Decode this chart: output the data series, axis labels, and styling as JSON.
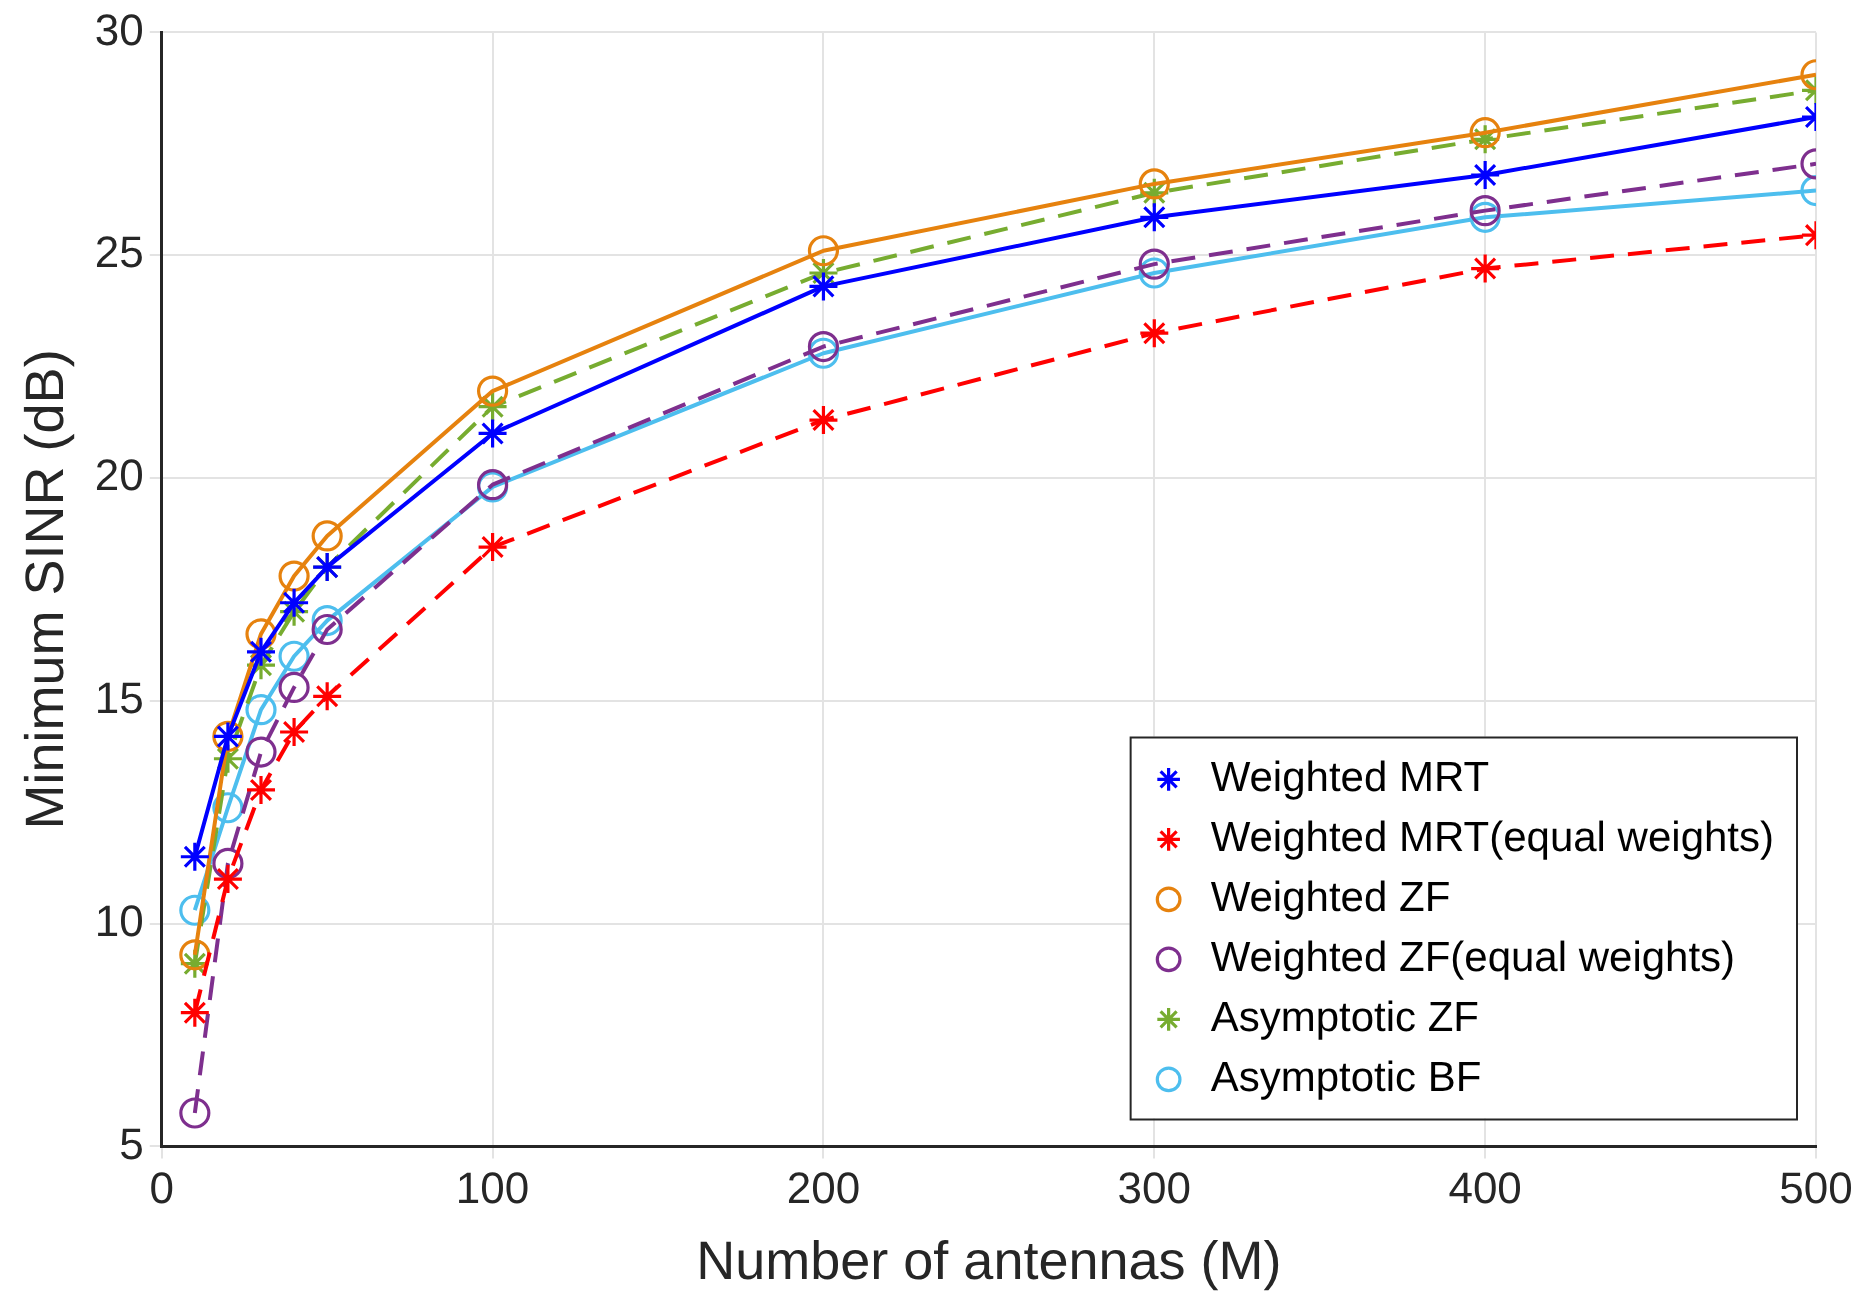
{
  "chart_data": {
    "type": "line",
    "xlabel": "Number of antennas (M)",
    "ylabel": "Minimum SINR (dB)",
    "x": [
      10,
      20,
      30,
      40,
      50,
      100,
      200,
      300,
      400,
      500
    ],
    "xlim": [
      0,
      500
    ],
    "xticks": [
      0,
      100,
      200,
      300,
      400,
      500
    ],
    "ylim": [
      5,
      30
    ],
    "yticks": [
      5,
      10,
      15,
      20,
      25,
      30
    ],
    "grid": true,
    "legend": "bottom right",
    "series": [
      {
        "name": "Weighted MRT",
        "color": "#0000ff",
        "marker": "cross",
        "line_style": "solid",
        "values": [
          11.5,
          14.2,
          16.1,
          17.2,
          18.0,
          21.0,
          24.3,
          25.85,
          26.8,
          28.1
        ]
      },
      {
        "name": "Weighted MRT(equal weights)",
        "color": "#ff0000",
        "marker": "cross",
        "line_style": "dashed",
        "values": [
          8.0,
          11.0,
          13.0,
          14.3,
          15.1,
          18.45,
          21.3,
          23.25,
          24.7,
          25.45
        ]
      },
      {
        "name": "Weighted ZF",
        "color": "#e6820e",
        "marker": "circle",
        "line_style": "solid",
        "values": [
          9.3,
          14.2,
          16.5,
          17.8,
          18.7,
          21.95,
          25.1,
          26.6,
          27.75,
          29.05
        ]
      },
      {
        "name": "Weighted ZF(equal weights)",
        "color": "#7e2f8e",
        "marker": "circle",
        "line_style": "dashed",
        "values": [
          5.75,
          11.35,
          13.85,
          15.3,
          16.6,
          19.85,
          22.95,
          24.8,
          26.0,
          27.05
        ]
      },
      {
        "name": "Asymptotic ZF",
        "color": "#77ac30",
        "marker": "cross",
        "line_style": "dashed",
        "values": [
          9.1,
          13.7,
          15.8,
          17.0,
          18.0,
          21.6,
          24.6,
          26.4,
          27.6,
          28.7
        ]
      },
      {
        "name": "Asymptotic BF",
        "color": "#4dbeee",
        "marker": "circle",
        "line_style": "solid",
        "values": [
          10.3,
          12.6,
          14.8,
          16.0,
          16.8,
          19.8,
          22.8,
          24.6,
          25.85,
          26.45
        ]
      }
    ]
  }
}
